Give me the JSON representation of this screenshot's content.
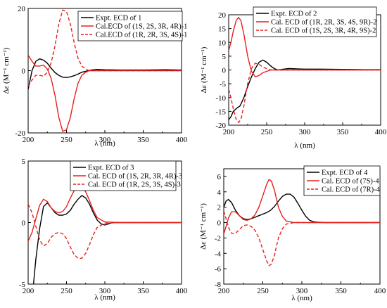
{
  "chart_data": [
    {
      "type": "line",
      "xlabel": "λ (nm)",
      "ylabel": "Δε (M⁻¹ cm⁻¹)",
      "xlim": [
        200,
        400
      ],
      "ylim": [
        -20,
        20
      ],
      "xticks": [
        "200",
        "250",
        "300",
        "350",
        "400"
      ],
      "yticks": [
        "20",
        "0",
        "-20"
      ],
      "legend_position": "top-center",
      "series": [
        {
          "name": "Expt. ECD of 1",
          "color": "#000000",
          "dash": "solid",
          "x": [
            200,
            205,
            210,
            215,
            220,
            225,
            230,
            235,
            240,
            245,
            250,
            255,
            260,
            265,
            270,
            275,
            280,
            285,
            290,
            300,
            320,
            350,
            380,
            400
          ],
          "y": [
            -6,
            0,
            3,
            3.8,
            3.4,
            2.4,
            0.8,
            -0.6,
            -1.5,
            -2.1,
            -2.2,
            -2.0,
            -1.6,
            -1.1,
            -0.5,
            -0.2,
            0.1,
            0.3,
            0.4,
            0.3,
            0.2,
            0.2,
            0.3,
            0.2
          ]
        },
        {
          "name": "Cal.ECD of (1S, 2S, 3R, 4R)-1",
          "color": "#e8201b",
          "dash": "solid",
          "x": [
            200,
            205,
            210,
            215,
            220,
            225,
            230,
            235,
            240,
            245,
            250,
            255,
            260,
            265,
            270,
            275,
            280,
            285,
            290,
            300,
            320,
            350,
            400
          ],
          "y": [
            5,
            3,
            1.5,
            1.5,
            1.8,
            0.5,
            -2.5,
            -8,
            -15,
            -19.5,
            -19,
            -15,
            -9,
            -4,
            -1.5,
            -0.5,
            0,
            0,
            0,
            0,
            0,
            0,
            0
          ]
        },
        {
          "name": "Cal.ECD of (1R, 2R, 3S, 4S)-1",
          "color": "#e8201b",
          "dash": "dashed",
          "x": [
            200,
            205,
            210,
            215,
            220,
            225,
            230,
            235,
            240,
            245,
            250,
            255,
            260,
            265,
            270,
            275,
            280,
            285,
            290,
            300,
            320,
            350,
            400
          ],
          "y": [
            -5,
            -3,
            -1.5,
            -1.5,
            -1.8,
            -0.5,
            2.5,
            8,
            15,
            19.5,
            19,
            15,
            9,
            4,
            1.5,
            0.5,
            0,
            0,
            0,
            0,
            0,
            0,
            0
          ]
        }
      ]
    },
    {
      "type": "line",
      "xlabel": "λ (nm)",
      "ylabel": "Δε (M⁻¹ cm⁻¹)",
      "xlim": [
        200,
        400
      ],
      "ylim": [
        -20,
        20
      ],
      "xticks": [
        "200",
        "250",
        "300",
        "350",
        "400"
      ],
      "yticks": [
        "20",
        "15",
        "10",
        "5",
        "0",
        "-5",
        "-10",
        "-15",
        "-20"
      ],
      "legend_position": "top-right",
      "series": [
        {
          "name": "Expt. ECD of 2",
          "color": "#000000",
          "dash": "solid",
          "x": [
            200,
            203,
            206,
            210,
            215,
            220,
            225,
            230,
            235,
            240,
            245,
            250,
            255,
            260,
            265,
            270,
            275,
            280,
            290,
            300,
            320,
            350,
            380,
            400
          ],
          "y": [
            -18,
            -17,
            -15,
            -14,
            -13,
            -10,
            -6,
            -2.5,
            0.5,
            2.8,
            3.6,
            2.8,
            1.5,
            0.5,
            0,
            0.2,
            0.4,
            0.5,
            0.4,
            0.3,
            0.3,
            0.2,
            0.1,
            0.1
          ]
        },
        {
          "name": "Cal. ECD of (1R, 2R, 3S, 4S, 9R)-2",
          "color": "#e8201b",
          "dash": "solid",
          "x": [
            200,
            203,
            206,
            210,
            213,
            216,
            220,
            225,
            230,
            235,
            240,
            245,
            250,
            255,
            260,
            270,
            280,
            300,
            350,
            400
          ],
          "y": [
            7,
            10,
            14,
            18,
            19,
            18,
            13,
            5,
            -0.5,
            -2.5,
            -2,
            -1,
            -0.5,
            0,
            0,
            0,
            0,
            0,
            0,
            0
          ]
        },
        {
          "name": "Cal. ECD of (1S, 2S, 3R, 4R, 9S)-2",
          "color": "#e8201b",
          "dash": "dashed",
          "x": [
            200,
            203,
            206,
            210,
            213,
            216,
            220,
            225,
            230,
            235,
            240,
            245,
            250,
            255,
            260,
            270,
            280,
            300,
            350,
            400
          ],
          "y": [
            -7,
            -10,
            -14,
            -18,
            -19,
            -18,
            -13,
            -5,
            0.5,
            2.5,
            2,
            1,
            0.5,
            0,
            0,
            0,
            0,
            0,
            0,
            0
          ]
        }
      ]
    },
    {
      "type": "line",
      "xlabel": "λ (nm)",
      "ylabel": "",
      "xlim": [
        200,
        400
      ],
      "ylim": [
        -5,
        5
      ],
      "xticks": [
        "200",
        "250",
        "300",
        "350",
        "400"
      ],
      "yticks": [
        "5",
        "0",
        "-5"
      ],
      "legend_position": "top-center",
      "series": [
        {
          "name": "Expt. ECD of 3",
          "color": "#000000",
          "dash": "solid",
          "x": [
            207,
            210,
            215,
            220,
            225,
            230,
            235,
            240,
            245,
            250,
            255,
            260,
            265,
            270,
            275,
            280,
            285,
            290,
            295,
            300,
            310,
            320,
            350,
            400
          ],
          "y": [
            -5,
            -3,
            -0.5,
            1.3,
            1.6,
            1.2,
            0.8,
            0.6,
            0.6,
            0.7,
            1.0,
            1.5,
            1.9,
            2.2,
            2.0,
            1.5,
            0.8,
            0.2,
            -0.1,
            -0.2,
            0,
            0,
            0,
            0
          ]
        },
        {
          "name": "Cal. ECD of (1S, 2R, 3R, 4R)-3",
          "color": "#e8201b",
          "dash": "solid",
          "x": [
            200,
            205,
            210,
            215,
            220,
            225,
            230,
            235,
            240,
            245,
            250,
            255,
            260,
            265,
            270,
            275,
            280,
            285,
            290,
            300,
            320,
            350,
            400
          ],
          "y": [
            -1.5,
            -0.8,
            0.3,
            1.4,
            1.9,
            1.7,
            1.2,
            0.9,
            0.8,
            0.9,
            1.3,
            2.0,
            2.6,
            2.9,
            2.9,
            2.5,
            1.8,
            1.0,
            0.4,
            0.05,
            0,
            0,
            0
          ]
        },
        {
          "name": "Cal. ECD of (1R, 2S, 3S, 4S)-3",
          "color": "#e8201b",
          "dash": "dashed",
          "x": [
            200,
            205,
            210,
            215,
            220,
            225,
            230,
            235,
            240,
            245,
            250,
            255,
            260,
            265,
            270,
            275,
            280,
            285,
            290,
            300,
            320,
            350,
            400
          ],
          "y": [
            1.5,
            0.8,
            -0.3,
            -1.4,
            -1.9,
            -1.7,
            -1.2,
            -0.9,
            -0.8,
            -0.9,
            -1.3,
            -2.0,
            -2.6,
            -2.9,
            -2.9,
            -2.5,
            -1.8,
            -1.0,
            -0.4,
            -0.05,
            0,
            0,
            0
          ]
        }
      ]
    },
    {
      "type": "line",
      "xlabel": "λ (nm)",
      "ylabel": "Δε (M⁻¹ cm⁻¹)",
      "xlim": [
        200,
        400
      ],
      "ylim": [
        -8,
        7
      ],
      "xticks": [
        "200",
        "250",
        "300",
        "350",
        "400"
      ],
      "yticks": [
        "6",
        "4",
        "2",
        "0",
        "-2",
        "-4",
        "-6",
        "-8"
      ],
      "legend_position": "top-right",
      "series": [
        {
          "name": "Expt. ECD of 4",
          "color": "#000000",
          "dash": "solid",
          "x": [
            200,
            203,
            206,
            210,
            215,
            220,
            225,
            230,
            235,
            240,
            245,
            250,
            255,
            260,
            265,
            270,
            275,
            280,
            285,
            290,
            295,
            300,
            305,
            310,
            315,
            320,
            330,
            350,
            380,
            400
          ],
          "y": [
            2.0,
            2.8,
            3.0,
            2.6,
            1.6,
            0.9,
            0.5,
            0.4,
            0.5,
            0.7,
            0.9,
            1.1,
            1.3,
            1.6,
            2.1,
            2.8,
            3.4,
            3.7,
            3.7,
            3.3,
            2.5,
            1.6,
            0.8,
            0.3,
            0.1,
            0.05,
            0,
            0,
            0,
            0
          ]
        },
        {
          "name": "Cal. ECD of (7S)-4",
          "color": "#e8201b",
          "dash": "solid",
          "x": [
            200,
            203,
            206,
            210,
            215,
            220,
            225,
            230,
            235,
            240,
            245,
            250,
            255,
            258,
            261,
            265,
            270,
            275,
            280,
            290,
            300,
            320,
            350,
            400
          ],
          "y": [
            -1.5,
            -0.5,
            0.6,
            1.4,
            1.4,
            0.9,
            0.4,
            0.3,
            0.5,
            1.0,
            2.0,
            3.5,
            5.0,
            5.6,
            5.4,
            4.2,
            2.0,
            0.8,
            0.2,
            0,
            0,
            0,
            0,
            0
          ]
        },
        {
          "name": "Cal. ECD of (7R)-4",
          "color": "#e8201b",
          "dash": "dashed",
          "x": [
            200,
            203,
            206,
            210,
            215,
            220,
            225,
            230,
            235,
            240,
            245,
            250,
            255,
            258,
            261,
            265,
            270,
            275,
            280,
            290,
            300,
            320,
            350,
            400
          ],
          "y": [
            1.5,
            0.5,
            -0.6,
            -1.4,
            -1.4,
            -0.9,
            -0.4,
            -0.3,
            -0.5,
            -1.0,
            -2.0,
            -3.5,
            -5.0,
            -5.6,
            -5.4,
            -4.2,
            -2.0,
            -0.8,
            -0.2,
            0,
            0,
            0,
            0,
            0
          ]
        }
      ]
    }
  ]
}
